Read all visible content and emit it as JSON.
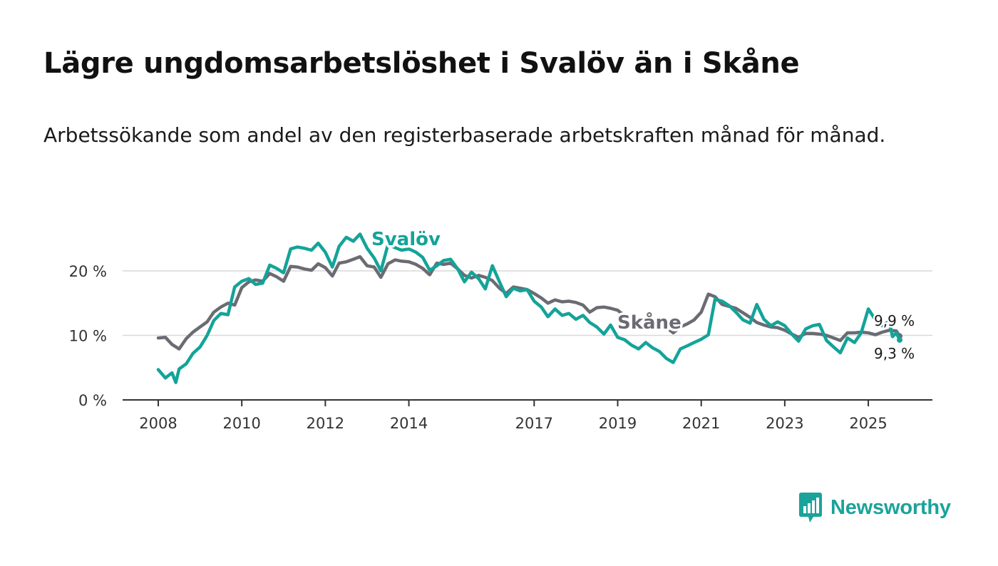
{
  "header": {
    "title": "Lägre ungdomsarbetslöshet i Svalöv än i Skåne",
    "subtitle": "Arbetssökande som andel av den registerbaserade arbetskraften månad för månad."
  },
  "brand": {
    "name": "Newsworthy"
  },
  "chart_data": {
    "type": "line",
    "title": "Lägre ungdomsarbetslöshet i Svalöv än i Skåne",
    "xlabel": "",
    "ylabel": "",
    "x_ticks": [
      "2008",
      "2010",
      "2012",
      "2014",
      "2017",
      "2019",
      "2021",
      "2023",
      "2025"
    ],
    "x_tick_values": [
      2008,
      2010,
      2012,
      2014,
      2017,
      2019,
      2021,
      2023,
      2025
    ],
    "y_ticks": [
      "0 %",
      "10 %",
      "20 %"
    ],
    "y_tick_values": [
      0,
      10,
      20
    ],
    "xlim": [
      2008,
      2025.75
    ],
    "ylim": [
      0,
      25
    ],
    "grid": true,
    "series": [
      {
        "name": "Skåne",
        "label": "Skåne",
        "end_label": "9,9 %",
        "color": "#6b6b73",
        "points": [
          [
            2008.0,
            9.6
          ],
          [
            2008.17,
            9.7
          ],
          [
            2008.33,
            8.6
          ],
          [
            2008.5,
            7.9
          ],
          [
            2008.67,
            9.5
          ],
          [
            2008.83,
            10.5
          ],
          [
            2009.0,
            11.3
          ],
          [
            2009.17,
            12.1
          ],
          [
            2009.33,
            13.6
          ],
          [
            2009.5,
            14.4
          ],
          [
            2009.67,
            15.0
          ],
          [
            2009.83,
            14.7
          ],
          [
            2010.0,
            17.4
          ],
          [
            2010.17,
            18.3
          ],
          [
            2010.33,
            18.6
          ],
          [
            2010.5,
            18.4
          ],
          [
            2010.67,
            19.6
          ],
          [
            2010.83,
            19.1
          ],
          [
            2011.0,
            18.4
          ],
          [
            2011.17,
            20.7
          ],
          [
            2011.33,
            20.6
          ],
          [
            2011.5,
            20.3
          ],
          [
            2011.67,
            20.1
          ],
          [
            2011.83,
            21.1
          ],
          [
            2012.0,
            20.5
          ],
          [
            2012.17,
            19.2
          ],
          [
            2012.33,
            21.2
          ],
          [
            2012.5,
            21.4
          ],
          [
            2012.67,
            21.8
          ],
          [
            2012.83,
            22.2
          ],
          [
            2013.0,
            20.8
          ],
          [
            2013.17,
            20.6
          ],
          [
            2013.33,
            19.0
          ],
          [
            2013.5,
            21.1
          ],
          [
            2013.67,
            21.7
          ],
          [
            2013.83,
            21.5
          ],
          [
            2014.0,
            21.4
          ],
          [
            2014.17,
            21.0
          ],
          [
            2014.33,
            20.4
          ],
          [
            2014.5,
            19.4
          ],
          [
            2014.67,
            21.2
          ],
          [
            2014.83,
            21.0
          ],
          [
            2015.0,
            21.2
          ],
          [
            2015.17,
            20.3
          ],
          [
            2015.33,
            19.3
          ],
          [
            2015.5,
            18.9
          ],
          [
            2015.67,
            19.3
          ],
          [
            2015.83,
            19.0
          ],
          [
            2016.0,
            18.5
          ],
          [
            2016.17,
            17.3
          ],
          [
            2016.33,
            16.5
          ],
          [
            2016.5,
            17.5
          ],
          [
            2016.67,
            17.3
          ],
          [
            2016.83,
            17.1
          ],
          [
            2017.0,
            16.5
          ],
          [
            2017.17,
            15.8
          ],
          [
            2017.33,
            15.0
          ],
          [
            2017.5,
            15.5
          ],
          [
            2017.67,
            15.2
          ],
          [
            2017.83,
            15.3
          ],
          [
            2018.0,
            15.1
          ],
          [
            2018.17,
            14.7
          ],
          [
            2018.33,
            13.6
          ],
          [
            2018.5,
            14.3
          ],
          [
            2018.67,
            14.4
          ],
          [
            2018.83,
            14.2
          ],
          [
            2019.0,
            13.9
          ],
          [
            2019.17,
            13.0
          ],
          [
            2019.33,
            11.9
          ],
          [
            2019.5,
            12.5
          ],
          [
            2019.67,
            12.7
          ],
          [
            2019.83,
            12.3
          ],
          [
            2020.0,
            12.0
          ],
          [
            2020.17,
            11.2
          ],
          [
            2020.33,
            10.4
          ],
          [
            2020.5,
            11.3
          ],
          [
            2020.67,
            11.8
          ],
          [
            2020.83,
            12.4
          ],
          [
            2021.0,
            13.6
          ],
          [
            2021.17,
            16.4
          ],
          [
            2021.33,
            16.0
          ],
          [
            2021.5,
            14.8
          ],
          [
            2021.67,
            14.5
          ],
          [
            2021.83,
            14.2
          ],
          [
            2022.0,
            13.5
          ],
          [
            2022.17,
            12.8
          ],
          [
            2022.33,
            12.0
          ],
          [
            2022.5,
            11.6
          ],
          [
            2022.67,
            11.3
          ],
          [
            2022.83,
            11.2
          ],
          [
            2023.0,
            10.8
          ],
          [
            2023.17,
            10.2
          ],
          [
            2023.33,
            9.7
          ],
          [
            2023.5,
            10.3
          ],
          [
            2023.67,
            10.3
          ],
          [
            2023.83,
            10.2
          ],
          [
            2024.0,
            10.0
          ],
          [
            2024.17,
            9.6
          ],
          [
            2024.33,
            9.2
          ],
          [
            2024.5,
            10.4
          ],
          [
            2024.67,
            10.4
          ],
          [
            2024.83,
            10.5
          ],
          [
            2025.0,
            10.4
          ],
          [
            2025.17,
            10.1
          ],
          [
            2025.33,
            10.5
          ],
          [
            2025.5,
            10.8
          ],
          [
            2025.67,
            10.7
          ],
          [
            2025.75,
            9.9
          ]
        ]
      },
      {
        "name": "Svalöv",
        "label": "Svalöv",
        "end_label": "9,3 %",
        "color": "#14a399",
        "points": [
          [
            2008.0,
            4.7
          ],
          [
            2008.17,
            3.4
          ],
          [
            2008.33,
            4.2
          ],
          [
            2008.42,
            2.7
          ],
          [
            2008.5,
            4.8
          ],
          [
            2008.67,
            5.6
          ],
          [
            2008.83,
            7.2
          ],
          [
            2009.0,
            8.2
          ],
          [
            2009.17,
            10.0
          ],
          [
            2009.33,
            12.3
          ],
          [
            2009.5,
            13.4
          ],
          [
            2009.67,
            13.2
          ],
          [
            2009.83,
            17.5
          ],
          [
            2010.0,
            18.4
          ],
          [
            2010.17,
            18.8
          ],
          [
            2010.33,
            17.9
          ],
          [
            2010.5,
            18.1
          ],
          [
            2010.67,
            20.9
          ],
          [
            2010.83,
            20.4
          ],
          [
            2011.0,
            19.7
          ],
          [
            2011.17,
            23.4
          ],
          [
            2011.33,
            23.7
          ],
          [
            2011.5,
            23.5
          ],
          [
            2011.67,
            23.2
          ],
          [
            2011.83,
            24.3
          ],
          [
            2012.0,
            22.9
          ],
          [
            2012.17,
            20.6
          ],
          [
            2012.33,
            23.8
          ],
          [
            2012.5,
            25.2
          ],
          [
            2012.67,
            24.6
          ],
          [
            2012.83,
            25.7
          ],
          [
            2013.0,
            23.5
          ],
          [
            2013.17,
            22.0
          ],
          [
            2013.33,
            20.0
          ],
          [
            2013.5,
            24.1
          ],
          [
            2013.67,
            23.6
          ],
          [
            2013.83,
            23.2
          ],
          [
            2014.0,
            23.4
          ],
          [
            2014.17,
            22.9
          ],
          [
            2014.33,
            22.1
          ],
          [
            2014.5,
            20.1
          ],
          [
            2014.67,
            20.8
          ],
          [
            2014.83,
            21.6
          ],
          [
            2015.0,
            21.8
          ],
          [
            2015.17,
            20.3
          ],
          [
            2015.33,
            18.3
          ],
          [
            2015.5,
            19.8
          ],
          [
            2015.67,
            18.8
          ],
          [
            2015.83,
            17.2
          ],
          [
            2016.0,
            20.8
          ],
          [
            2016.17,
            18.3
          ],
          [
            2016.33,
            16.0
          ],
          [
            2016.5,
            17.3
          ],
          [
            2016.67,
            16.9
          ],
          [
            2016.83,
            17.1
          ],
          [
            2017.0,
            15.3
          ],
          [
            2017.17,
            14.4
          ],
          [
            2017.33,
            12.9
          ],
          [
            2017.5,
            14.1
          ],
          [
            2017.67,
            13.1
          ],
          [
            2017.83,
            13.4
          ],
          [
            2018.0,
            12.5
          ],
          [
            2018.17,
            13.1
          ],
          [
            2018.33,
            12.0
          ],
          [
            2018.5,
            11.3
          ],
          [
            2018.67,
            10.2
          ],
          [
            2018.83,
            11.6
          ],
          [
            2019.0,
            9.7
          ],
          [
            2019.17,
            9.3
          ],
          [
            2019.33,
            8.5
          ],
          [
            2019.5,
            7.9
          ],
          [
            2019.67,
            8.9
          ],
          [
            2019.83,
            8.1
          ],
          [
            2020.0,
            7.5
          ],
          [
            2020.17,
            6.4
          ],
          [
            2020.33,
            5.8
          ],
          [
            2020.5,
            7.9
          ],
          [
            2020.67,
            8.4
          ],
          [
            2020.83,
            8.9
          ],
          [
            2021.0,
            9.4
          ],
          [
            2021.17,
            10.1
          ],
          [
            2021.33,
            15.6
          ],
          [
            2021.5,
            15.3
          ],
          [
            2021.67,
            14.6
          ],
          [
            2021.83,
            13.6
          ],
          [
            2022.0,
            12.4
          ],
          [
            2022.17,
            11.9
          ],
          [
            2022.33,
            14.8
          ],
          [
            2022.5,
            12.5
          ],
          [
            2022.67,
            11.5
          ],
          [
            2022.83,
            12.1
          ],
          [
            2023.0,
            11.5
          ],
          [
            2023.17,
            10.2
          ],
          [
            2023.33,
            9.1
          ],
          [
            2023.5,
            11.0
          ],
          [
            2023.67,
            11.5
          ],
          [
            2023.83,
            11.7
          ],
          [
            2024.0,
            9.2
          ],
          [
            2024.17,
            8.2
          ],
          [
            2024.33,
            7.3
          ],
          [
            2024.5,
            9.6
          ],
          [
            2024.67,
            8.9
          ],
          [
            2024.83,
            10.4
          ],
          [
            2025.0,
            14.1
          ],
          [
            2025.17,
            12.4
          ],
          [
            2025.33,
            11.5
          ],
          [
            2025.5,
            12.2
          ],
          [
            2025.58,
            9.8
          ],
          [
            2025.67,
            10.4
          ],
          [
            2025.75,
            9.3
          ]
        ]
      }
    ]
  }
}
